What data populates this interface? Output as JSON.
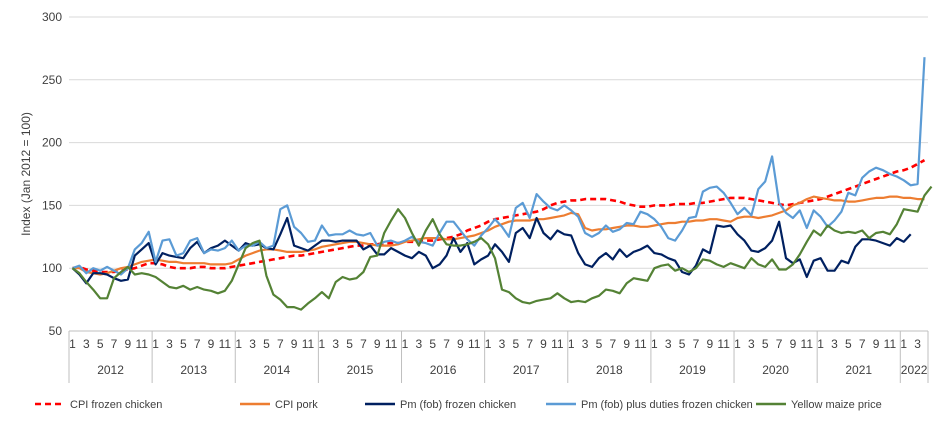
{
  "chart_data": {
    "type": "line",
    "title": "",
    "ylabel": "Index (Jan 2012 = 100)",
    "xlabel": "",
    "ylim": [
      50,
      300
    ],
    "yticks": [
      50,
      100,
      150,
      200,
      250,
      300
    ],
    "grid": "horizontal",
    "legend_position": "bottom",
    "month_tick_labels": [
      "1",
      "3",
      "5",
      "7",
      "9",
      "11",
      "1",
      "3",
      "5",
      "7",
      "9",
      "11",
      "1",
      "3",
      "5",
      "7",
      "9",
      "11",
      "1",
      "3",
      "5",
      "7",
      "9",
      "11",
      "1",
      "3",
      "5",
      "7",
      "9",
      "11",
      "1",
      "3",
      "5",
      "7",
      "9",
      "11",
      "1",
      "3",
      "5",
      "7",
      "9",
      "11",
      "1",
      "3",
      "5",
      "7",
      "9",
      "11",
      "1",
      "3",
      "5",
      "7",
      "9",
      "11",
      "1",
      "3",
      "5",
      "7",
      "9",
      "11",
      "1",
      "3"
    ],
    "year_labels": [
      "2012",
      "2013",
      "2014",
      "2015",
      "2016",
      "2017",
      "2018",
      "2019",
      "2020",
      "2021",
      "2022"
    ],
    "x_start": "2012-01",
    "x_end": "2022-04",
    "series": [
      {
        "name": "CPI frozen chicken",
        "color": "#ff0000",
        "dash": true,
        "values": [
          100,
          101,
          99,
          98,
          97,
          97,
          97,
          98,
          99,
          100,
          102,
          104,
          104,
          103,
          101,
          100,
          100,
          100,
          101,
          101,
          100,
          100,
          100,
          101,
          102,
          103,
          104,
          105,
          106,
          107,
          108,
          109,
          110,
          110,
          111,
          112,
          113,
          114,
          115,
          116,
          117,
          118,
          118,
          119,
          119,
          120,
          120,
          120,
          121,
          121,
          121,
          122,
          122,
          123,
          124,
          125,
          127,
          130,
          132,
          134,
          137,
          139,
          140,
          141,
          142,
          143,
          144,
          145,
          147,
          150,
          152,
          153,
          154,
          154,
          155,
          155,
          155,
          155,
          154,
          153,
          151,
          150,
          149,
          149,
          150,
          150,
          150,
          151,
          151,
          151,
          152,
          152,
          153,
          154,
          155,
          156,
          156,
          156,
          155,
          154,
          153,
          152,
          151,
          150,
          151,
          152,
          153,
          154,
          155,
          157,
          159,
          161,
          163,
          165,
          167,
          169,
          171,
          173,
          175,
          177,
          178,
          180,
          183,
          186
        ]
      },
      {
        "name": "CPI pork",
        "color": "#ed7d31",
        "dash": false,
        "values": [
          100,
          100,
          97,
          96,
          95,
          96,
          98,
          100,
          101,
          103,
          105,
          106,
          107,
          106,
          105,
          105,
          104,
          104,
          104,
          104,
          103,
          103,
          103,
          104,
          107,
          110,
          112,
          114,
          115,
          115,
          114,
          113,
          113,
          113,
          114,
          115,
          117,
          118,
          119,
          120,
          121,
          121,
          120,
          119,
          118,
          118,
          118,
          119,
          121,
          122,
          123,
          124,
          124,
          124,
          123,
          123,
          124,
          125,
          126,
          128,
          130,
          133,
          135,
          137,
          138,
          138,
          138,
          139,
          139,
          140,
          141,
          142,
          144,
          143,
          132,
          130,
          131,
          131,
          132,
          133,
          134,
          134,
          133,
          133,
          134,
          135,
          136,
          136,
          137,
          137,
          138,
          138,
          139,
          139,
          138,
          137,
          140,
          141,
          141,
          140,
          141,
          142,
          144,
          146,
          150,
          152,
          155,
          157,
          156,
          155,
          154,
          154,
          153,
          153,
          154,
          155,
          156,
          156,
          157,
          157,
          156,
          156,
          155,
          155
        ]
      },
      {
        "name": "Pm (fob) frozen chicken",
        "color": "#002060",
        "dash": false,
        "values": [
          100,
          95,
          88,
          96,
          96,
          95,
          92,
          90,
          91,
          110,
          115,
          120,
          103,
          112,
          110,
          109,
          108,
          116,
          121,
          112,
          116,
          118,
          122,
          118,
          114,
          120,
          118,
          119,
          116,
          115,
          127,
          140,
          118,
          116,
          114,
          118,
          122,
          122,
          121,
          122,
          122,
          122,
          115,
          118,
          111,
          111,
          116,
          113,
          110,
          108,
          113,
          110,
          100,
          103,
          110,
          124,
          113,
          120,
          103,
          107,
          110,
          119,
          113,
          105,
          128,
          132,
          124,
          140,
          128,
          123,
          130,
          127,
          126,
          112,
          103,
          101,
          108,
          112,
          107,
          115,
          109,
          113,
          115,
          118,
          112,
          111,
          108,
          106,
          97,
          95,
          102,
          115,
          112,
          134,
          133,
          134,
          127,
          122,
          114,
          113,
          116,
          122,
          137,
          108,
          104,
          107,
          93,
          106,
          108,
          98,
          98,
          106,
          104,
          117,
          123,
          123,
          122,
          120,
          118,
          124,
          121,
          127
        ]
      },
      {
        "name": "Pm (fob) plus duties frozen chicken",
        "color": "#5b9bd5",
        "dash": false,
        "values": [
          100,
          102,
          96,
          100,
          98,
          101,
          98,
          95,
          100,
          115,
          120,
          129,
          105,
          122,
          123,
          110,
          112,
          122,
          124,
          112,
          115,
          114,
          116,
          122,
          114,
          118,
          118,
          121,
          116,
          118,
          147,
          150,
          133,
          128,
          121,
          122,
          134,
          126,
          127,
          127,
          130,
          127,
          126,
          128,
          118,
          121,
          122,
          120,
          122,
          125,
          121,
          120,
          118,
          128,
          137,
          137,
          130,
          123,
          118,
          126,
          132,
          139,
          133,
          125,
          148,
          152,
          140,
          159,
          153,
          148,
          146,
          150,
          146,
          141,
          128,
          125,
          128,
          134,
          129,
          131,
          136,
          135,
          145,
          143,
          139,
          133,
          124,
          122,
          130,
          140,
          141,
          161,
          164,
          165,
          160,
          152,
          143,
          148,
          142,
          163,
          169,
          189,
          152,
          144,
          140,
          146,
          132,
          146,
          141,
          133,
          138,
          145,
          160,
          158,
          172,
          177,
          180,
          178,
          175,
          173,
          170,
          166,
          167,
          268
        ]
      },
      {
        "name": "Yellow maize price",
        "color": "#548235",
        "dash": false,
        "values": [
          100,
          96,
          89,
          83,
          76,
          76,
          92,
          97,
          101,
          95,
          96,
          95,
          93,
          89,
          85,
          84,
          86,
          83,
          85,
          83,
          82,
          80,
          82,
          90,
          103,
          116,
          120,
          122,
          94,
          79,
          75,
          69,
          69,
          67,
          72,
          76,
          81,
          76,
          89,
          93,
          91,
          92,
          97,
          109,
          110,
          128,
          138,
          147,
          140,
          128,
          118,
          130,
          139,
          127,
          119,
          118,
          118,
          119,
          121,
          124,
          119,
          108,
          83,
          81,
          76,
          73,
          72,
          74,
          75,
          76,
          80,
          76,
          73,
          74,
          73,
          76,
          78,
          83,
          82,
          80,
          88,
          92,
          91,
          90,
          100,
          102,
          103,
          98,
          100,
          97,
          100,
          107,
          106,
          103,
          101,
          104,
          102,
          100,
          108,
          103,
          101,
          107,
          99,
          99,
          103,
          111,
          121,
          130,
          126,
          134,
          130,
          128,
          129,
          128,
          130,
          124,
          128,
          129,
          127,
          135,
          147,
          146,
          145,
          158,
          165
        ]
      }
    ]
  }
}
